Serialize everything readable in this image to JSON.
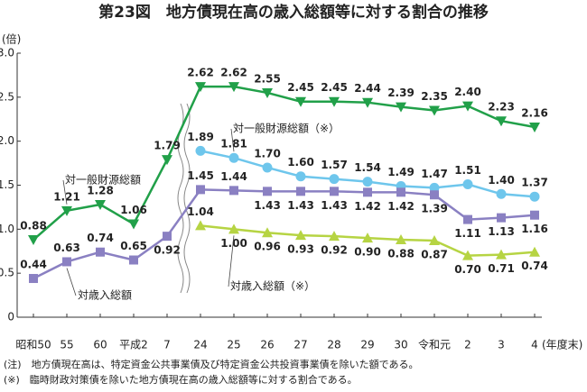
{
  "chart_data": {
    "type": "line",
    "title": "第23図　地方債現在高の歳入総額等に対する割合の推移",
    "y_label": "(倍)",
    "x_label": "(年度末)",
    "categories": [
      "昭和50",
      "55",
      "60",
      "平成2",
      "7",
      "24",
      "25",
      "26",
      "27",
      "28",
      "29",
      "30",
      "令和元",
      "2",
      "3",
      "4"
    ],
    "ylim": [
      0,
      3
    ],
    "yticks": [
      0,
      0.5,
      {
        "value": 1,
        "label": "1.0"
      },
      1.5,
      {
        "value": 2,
        "label": "2.0"
      },
      2.5,
      {
        "value": 3,
        "label": "3.0"
      }
    ],
    "series": [
      {
        "name": "対一般財源総額",
        "color": "#21a049",
        "values": [
          0.88,
          1.21,
          1.28,
          1.06,
          1.79,
          2.62,
          2.62,
          2.55,
          2.45,
          2.45,
          2.44,
          2.39,
          2.35,
          2.4,
          2.23,
          2.16
        ],
        "value_labels": [
          "0.88",
          "1.21",
          "1.28",
          "1.06",
          "1.79",
          "2.62",
          "2.62",
          "2.55",
          "2.45",
          "2.45",
          "2.44",
          "2.39",
          "2.35",
          "2.40",
          "2.23",
          "2.16"
        ]
      },
      {
        "name": "対一般財源総額（※）",
        "color": "#6ec6ec",
        "values": [
          null,
          null,
          null,
          null,
          null,
          1.89,
          1.81,
          1.7,
          1.6,
          1.57,
          1.54,
          1.49,
          1.47,
          1.51,
          1.4,
          1.37
        ],
        "value_labels": [
          null,
          null,
          null,
          null,
          null,
          "1.89",
          "1.81",
          "1.70",
          "1.60",
          "1.57",
          "1.54",
          "1.49",
          "1.47",
          "1.51",
          "1.40",
          "1.37"
        ]
      },
      {
        "name": "対歳入総額",
        "color": "#8a80c2",
        "values": [
          0.44,
          0.63,
          0.74,
          0.65,
          0.92,
          1.45,
          1.44,
          1.43,
          1.43,
          1.43,
          1.42,
          1.42,
          1.39,
          1.11,
          1.13,
          1.16
        ],
        "value_labels": [
          "0.44",
          "0.63",
          "0.74",
          "0.65",
          "0.92",
          "1.45",
          "1.44",
          "1.43",
          "1.43",
          "1.43",
          "1.42",
          "1.42",
          "1.39",
          "1.11",
          "1.13",
          "1.16"
        ]
      },
      {
        "name": "対歳入総額（※）",
        "color": "#b6d443",
        "values": [
          null,
          null,
          null,
          null,
          null,
          1.04,
          1.0,
          0.96,
          0.93,
          0.92,
          0.9,
          0.88,
          0.87,
          0.7,
          0.71,
          0.74
        ],
        "value_labels": [
          null,
          null,
          null,
          null,
          null,
          "1.04",
          "1.00",
          "0.96",
          "0.93",
          "0.92",
          "0.90",
          "0.88",
          "0.87",
          "0.70",
          "0.71",
          "0.74"
        ]
      }
    ],
    "notes": [
      "(注)　地方債現在高は、特定資金公共事業債及び特定資金公共投資事業債を除いた額である。",
      "(※)　臨時財政対策債を除いた地方債現在高の歳入総額等に対する割合である。"
    ]
  }
}
